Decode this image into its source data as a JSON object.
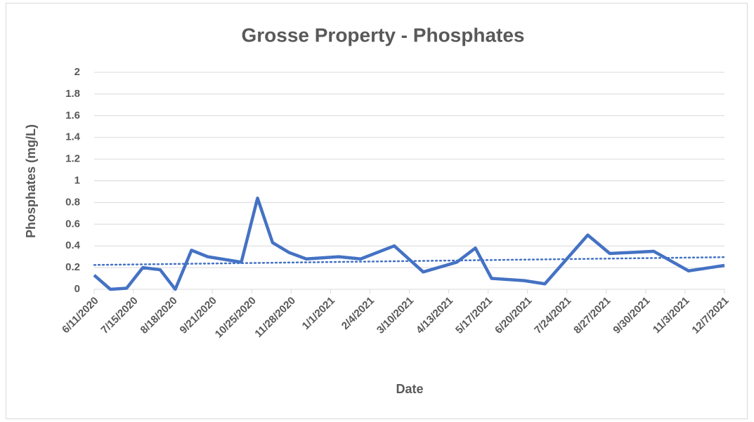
{
  "chart_data": {
    "type": "line",
    "title": "Grosse Property - Phosphates",
    "x_label": "Date",
    "y_label": "Phosphates (mg/L)",
    "x": [
      "6/11/2020",
      "6/25/2020",
      "7/9/2020",
      "7/23/2020",
      "8/7/2020",
      "8/20/2020",
      "9/3/2020",
      "9/17/2020",
      "10/16/2020",
      "10/30/2020",
      "11/12/2020",
      "11/26/2020",
      "12/11/2020",
      "1/8/2021",
      "1/27/2021",
      "2/25/2021",
      "3/22/2021",
      "4/20/2021",
      "5/6/2021",
      "5/20/2021",
      "6/17/2021",
      "7/5/2021",
      "8/11/2021",
      "8/30/2021",
      "10/7/2021",
      "11/6/2021",
      "12/7/2021"
    ],
    "series": [
      {
        "name": "Phosphates",
        "color": "#4472c4",
        "values": [
          0.13,
          0.0,
          0.01,
          0.2,
          0.18,
          0.0,
          0.36,
          0.3,
          0.25,
          0.84,
          0.43,
          0.34,
          0.28,
          0.3,
          0.28,
          0.4,
          0.16,
          0.25,
          0.38,
          0.1,
          0.08,
          0.05,
          0.5,
          0.33,
          0.35,
          0.17,
          0.22
        ]
      }
    ],
    "trendline": true,
    "xlim": [
      "6/11/2020",
      "12/7/2021"
    ],
    "xticks": [
      "6/11/2020",
      "7/15/2020",
      "8/18/2020",
      "9/21/2020",
      "10/25/2020",
      "11/28/2020",
      "1/1/2021",
      "2/4/2021",
      "3/10/2021",
      "4/13/2021",
      "5/17/2021",
      "6/20/2021",
      "7/24/2021",
      "8/27/2021",
      "9/30/2021",
      "11/3/2021",
      "12/7/2021"
    ],
    "ylim": [
      0,
      2
    ],
    "yticks": [
      0,
      0.2,
      0.4,
      0.6,
      0.8,
      1,
      1.2,
      1.4,
      1.6,
      1.8,
      2
    ],
    "grid": true
  }
}
